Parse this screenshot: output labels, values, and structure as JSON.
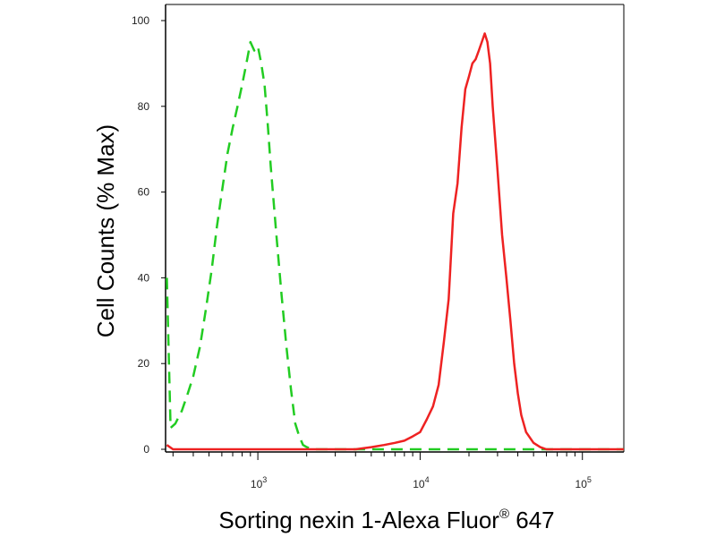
{
  "chart_data": {
    "type": "line",
    "title": "",
    "xlabel": "Sorting nexin 1-Alexa Fluor",
    "xlabel_superscript": "®",
    "xlabel_suffix": " 647",
    "ylabel": "Cell Counts (% Max)",
    "x_scale": "log",
    "xlim": [
      270,
      180000
    ],
    "ylim": [
      0,
      100
    ],
    "y_ticks": [
      0,
      20,
      40,
      60,
      80,
      100
    ],
    "y_tick_labels": [
      "0",
      "20",
      "40",
      "60",
      "80",
      "100"
    ],
    "x_ticks": [
      1000,
      10000,
      100000
    ],
    "x_tick_base": "10",
    "x_tick_exponents": [
      "3",
      "4",
      "5"
    ],
    "grid": false,
    "legend": "none",
    "series": [
      {
        "color": "#22cc22",
        "dash": "dashed",
        "x": [
          275,
          290,
          310,
          340,
          370,
          400,
          440,
          480,
          520,
          560,
          600,
          650,
          700,
          750,
          800,
          850,
          900,
          950,
          1000,
          1050,
          1100,
          1150,
          1200,
          1300,
          1400,
          1500,
          1600,
          1700,
          1800,
          1900,
          2000,
          2100,
          2200,
          2500,
          3000,
          5000,
          10000,
          50000,
          180000
        ],
        "y": [
          40,
          5,
          6,
          9,
          13,
          17,
          24,
          33,
          42,
          52,
          60,
          69,
          75,
          80,
          85,
          90,
          95,
          93,
          94,
          90,
          85,
          76,
          66,
          50,
          36,
          24,
          14,
          6,
          3,
          1,
          0.5,
          0.2,
          0,
          0,
          0,
          0,
          0,
          0,
          0
        ]
      },
      {
        "color": "#ee2222",
        "dash": "solid",
        "x": [
          275,
          300,
          350,
          500,
          1000,
          2000,
          3000,
          4000,
          5000,
          6000,
          7000,
          8000,
          9000,
          10000,
          11000,
          12000,
          13000,
          14000,
          15000,
          16000,
          17000,
          18000,
          19000,
          20000,
          21000,
          22000,
          23000,
          24000,
          25000,
          26000,
          27000,
          28000,
          30000,
          32000,
          34000,
          36000,
          38000,
          40000,
          42000,
          45000,
          50000,
          55000,
          60000,
          65000,
          70000,
          180000
        ],
        "y": [
          1,
          0,
          0,
          0,
          0,
          0,
          0,
          0,
          0.5,
          1,
          1.5,
          2,
          3,
          4,
          7,
          10,
          15,
          25,
          35,
          55,
          62,
          75,
          84,
          87,
          90,
          91,
          93,
          95,
          97,
          95,
          90,
          80,
          65,
          50,
          40,
          30,
          20,
          13,
          8,
          4,
          1.5,
          0.5,
          0,
          0,
          0,
          0
        ]
      }
    ]
  }
}
